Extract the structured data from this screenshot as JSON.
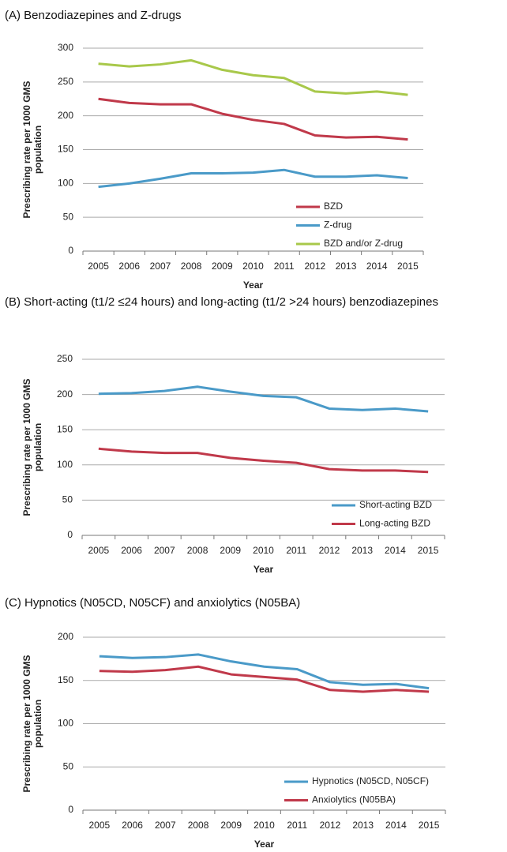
{
  "chart_data": [
    {
      "type": "line",
      "title": "(A) Benzodiazepines and Z-drugs",
      "ylabel": [
        "Prescribing rate per 1000 GMS",
        "population"
      ],
      "xlabel": "Year",
      "categories": [
        "2005",
        "2006",
        "2007",
        "2008",
        "2009",
        "2010",
        "2011",
        "2012",
        "2013",
        "2014",
        "2015"
      ],
      "series": [
        {
          "name": "BZD",
          "color": "#c0394a",
          "values": [
            225,
            219,
            217,
            217,
            203,
            194,
            188,
            171,
            168,
            169,
            165
          ]
        },
        {
          "name": "Z-drug",
          "color": "#4a9ac8",
          "values": [
            95,
            100,
            107,
            115,
            115,
            116,
            120,
            110,
            110,
            112,
            108
          ]
        },
        {
          "name": "BZD and/or Z-drug",
          "color": "#a8c84a",
          "values": [
            277,
            273,
            276,
            282,
            268,
            260,
            256,
            236,
            233,
            236,
            231
          ]
        }
      ],
      "ylim": [
        0,
        300
      ],
      "yticks": [
        0,
        50,
        100,
        150,
        200,
        250,
        300
      ],
      "grid": true,
      "legend": "lower right"
    },
    {
      "type": "line",
      "title": "(B) Short-acting (t1/2 ≤24 hours) and long-acting (t1/2 >24 hours) benzodiazepines",
      "ylabel": [
        "Prescribing rate per 1000 GMS",
        "population"
      ],
      "xlabel": "Year",
      "categories": [
        "2005",
        "2006",
        "2007",
        "2008",
        "2009",
        "2010",
        "2011",
        "2012",
        "2013",
        "2014",
        "2015"
      ],
      "series": [
        {
          "name": "Short-acting BZD",
          "color": "#4a9ac8",
          "values": [
            201,
            202,
            205,
            211,
            204,
            198,
            196,
            180,
            178,
            180,
            176
          ]
        },
        {
          "name": "Long-acting BZD",
          "color": "#c0394a",
          "values": [
            123,
            119,
            117,
            117,
            110,
            106,
            103,
            94,
            92,
            92,
            90
          ]
        }
      ],
      "ylim": [
        0,
        250
      ],
      "yticks": [
        0,
        50,
        100,
        150,
        200,
        250
      ],
      "grid": true,
      "legend": "lower right"
    },
    {
      "type": "line",
      "title": "(C) Hypnotics (N05CD, N05CF) and anxiolytics (N05BA)",
      "ylabel": [
        "Prescribing rate per 1000 GMS",
        "population"
      ],
      "xlabel": "Year",
      "categories": [
        "2005",
        "2006",
        "2007",
        "2008",
        "2009",
        "2010",
        "2011",
        "2012",
        "2013",
        "2014",
        "2015"
      ],
      "series": [
        {
          "name": "Hypnotics (N05CD, N05CF)",
          "color": "#4a9ac8",
          "values": [
            178,
            176,
            177,
            180,
            172,
            166,
            163,
            148,
            145,
            146,
            141
          ]
        },
        {
          "name": "Anxiolytics (N05BA)",
          "color": "#c0394a",
          "values": [
            161,
            160,
            162,
            166,
            157,
            154,
            151,
            139,
            137,
            139,
            137
          ]
        }
      ],
      "ylim": [
        0,
        200
      ],
      "yticks": [
        0,
        50,
        100,
        150,
        200
      ],
      "grid": true,
      "legend": "lower right"
    }
  ]
}
